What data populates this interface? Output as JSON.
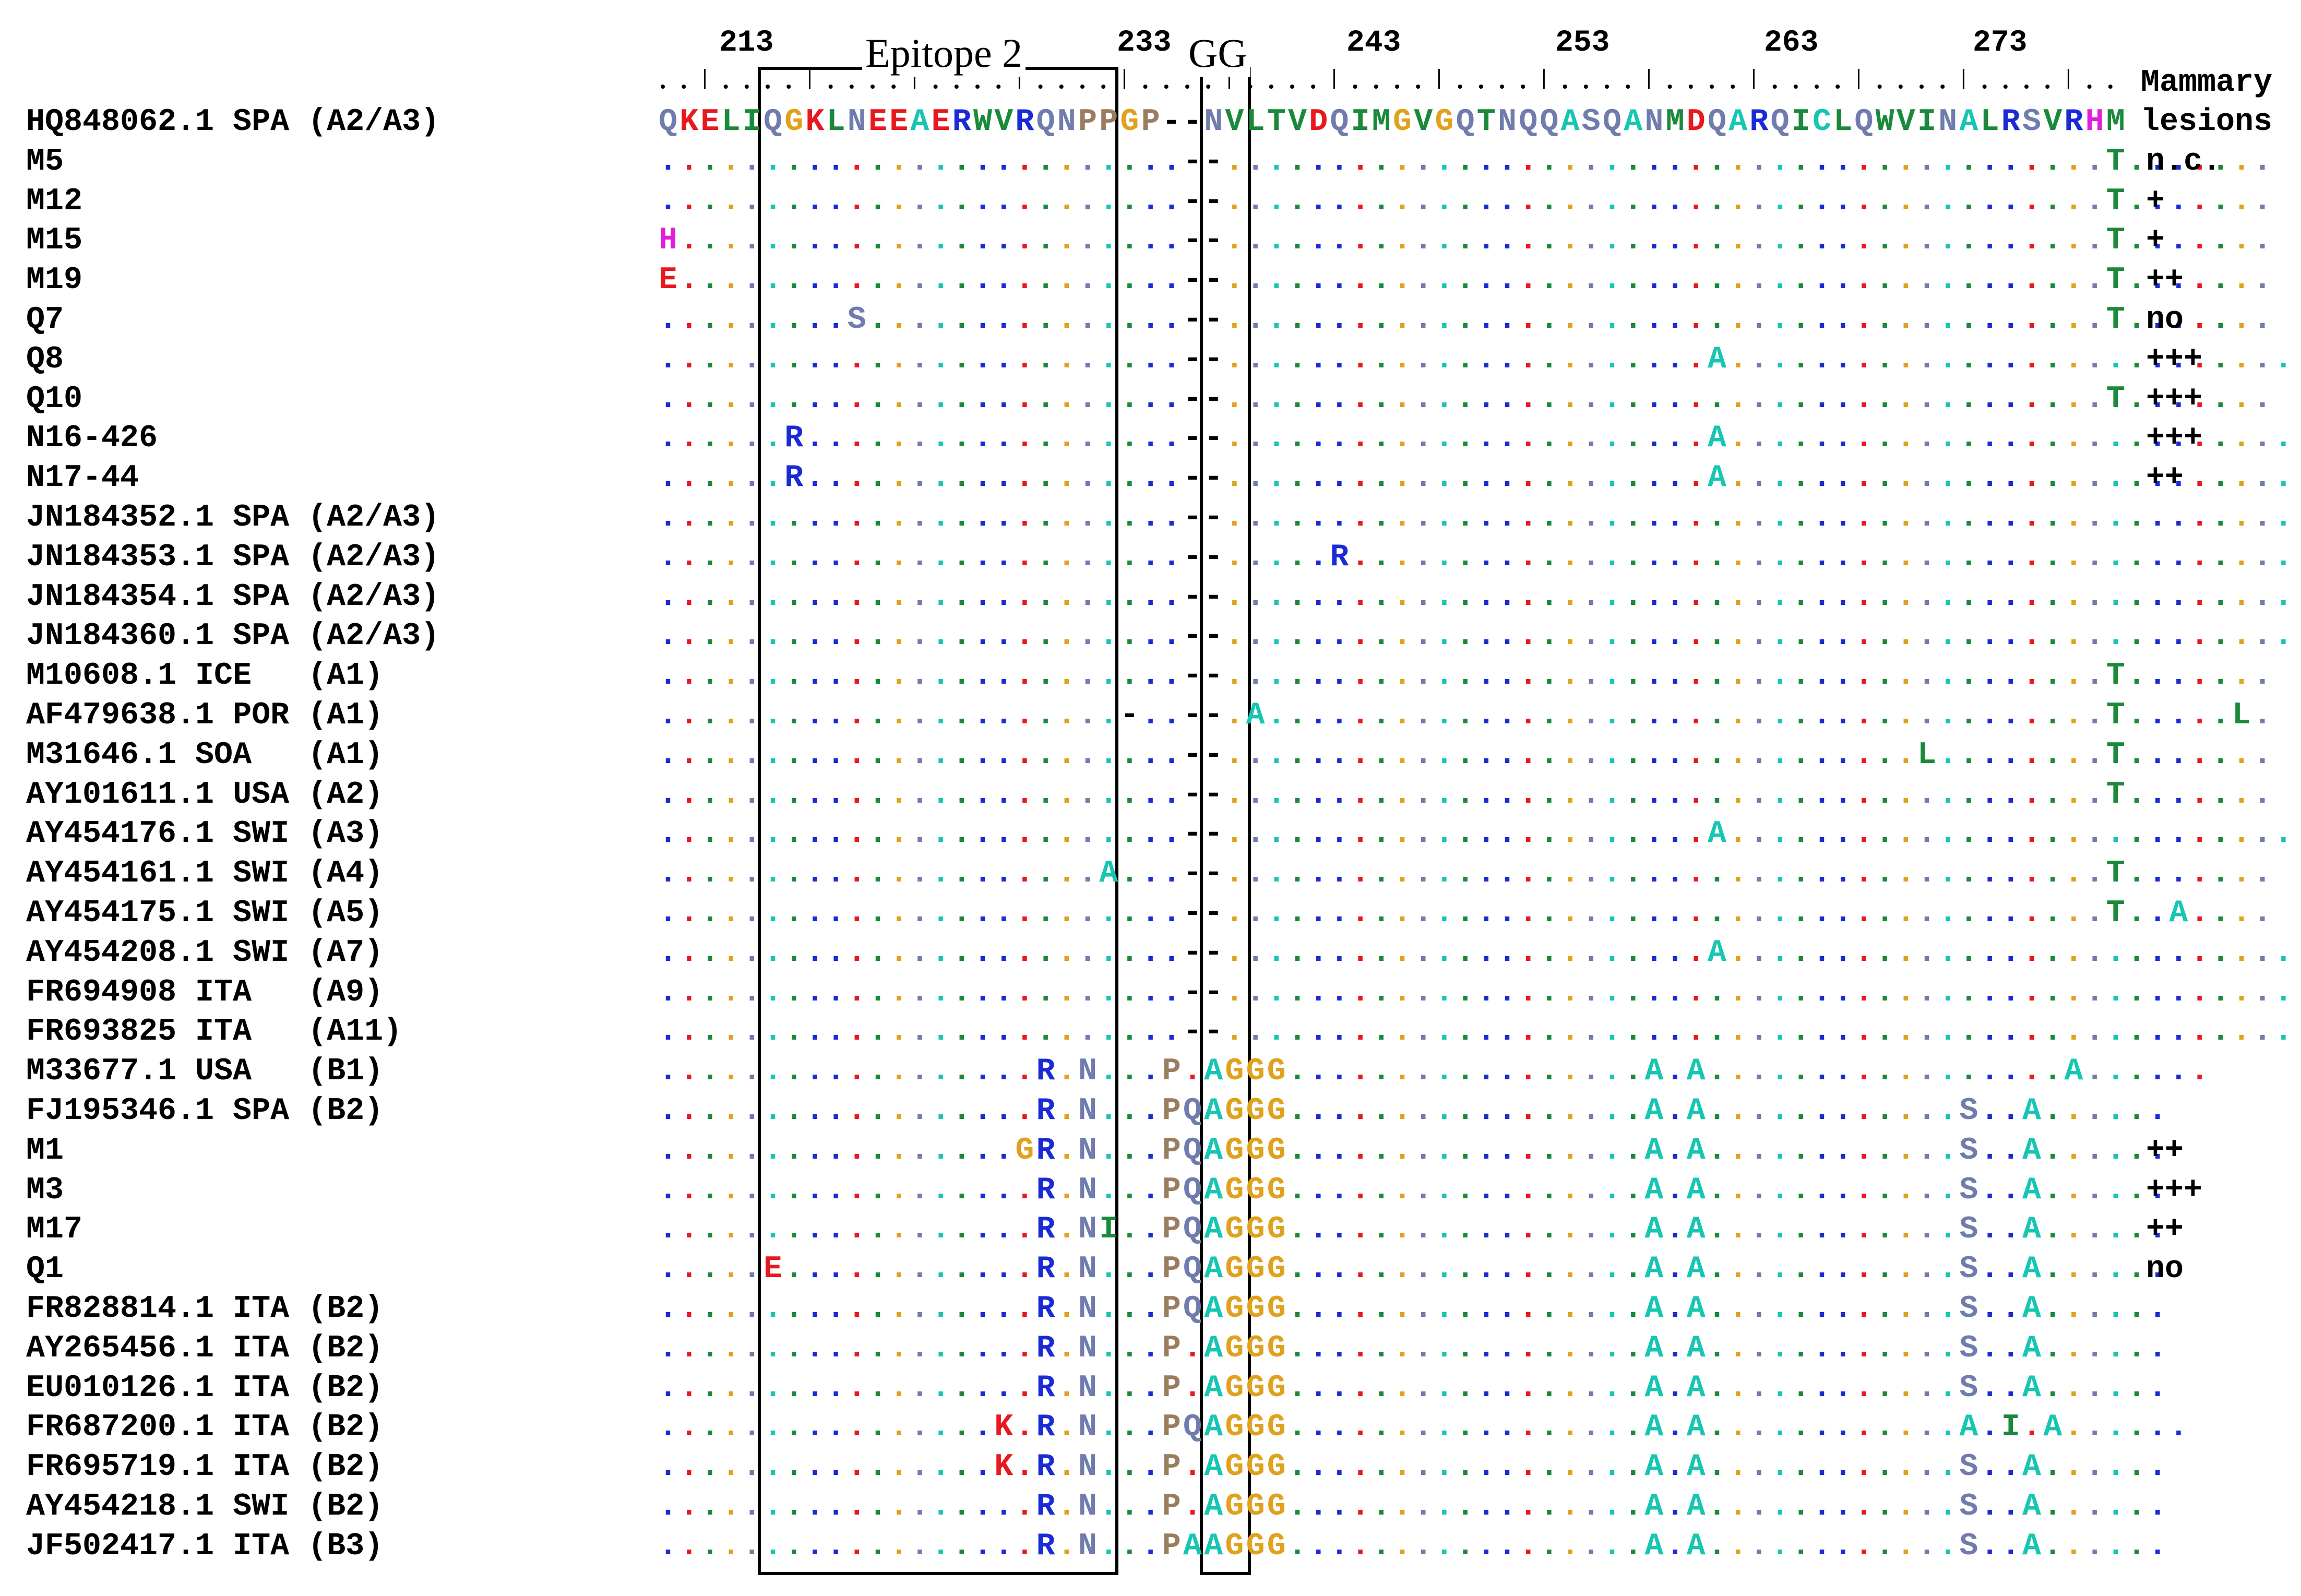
{
  "figure": {
    "epitope_label": "Epitope 2",
    "gg_label": "GG",
    "lesions_header_1": "Mammary",
    "lesions_header_2": "lesions",
    "ruler_numbers": [
      "213",
      "233",
      "243",
      "253",
      "263",
      "273"
    ],
    "colors": {
      "red": "#e8191e",
      "blue": "#1a2bd6",
      "teal": "#17c6b2",
      "green": "#1a8a3a",
      "orange": "#e0a21d",
      "slate": "#6f7cad",
      "brown": "#9a7d5c",
      "magenta": "#e020d8"
    },
    "reference": {
      "label": "HQ848062.1 SPA (A2/A3)",
      "sequence": "QKELIQGKLNEEAERWVRQNPPGP--NVLTVDQIMGVGQTNQQASQANMDQARQICLQWVINALRSVRHM",
      "lesions": "lesions"
    },
    "rows": [
      {
        "label": "M5",
        "lesions": "n.c.",
        "sequence": ".........................--..........................................T......."
      },
      {
        "label": "M12",
        "lesions": "+",
        "sequence": ".........................--..........................................T......."
      },
      {
        "label": "M15",
        "lesions": "+",
        "sequence": "H........................--..........................................T......."
      },
      {
        "label": "M19",
        "lesions": "++",
        "sequence": "E........................--..........................................T......."
      },
      {
        "label": "Q7",
        "lesions": "no",
        "sequence": ".........S...............--..........................................T......."
      },
      {
        "label": "Q8",
        "lesions": "+++",
        "sequence": ".........................--.......................A..........................."
      },
      {
        "label": "Q10",
        "lesions": "+++",
        "sequence": ".........................--..........................................T......."
      },
      {
        "label": "N16-426",
        "lesions": "+++",
        "sequence": "......R..................--.......................A..........................."
      },
      {
        "label": "N17-44",
        "lesions": "++",
        "sequence": "......R..................--.......................A..........................."
      },
      {
        "label": "JN184352.1 SPA (A2/A3)",
        "lesions": "",
        "sequence": ".........................--...................................................."
      },
      {
        "label": "JN184353.1 SPA (A2/A3)",
        "lesions": "",
        "sequence": ".........................--.....R.............................................."
      },
      {
        "label": "JN184354.1 SPA (A2/A3)",
        "lesions": "",
        "sequence": ".........................--...................................................."
      },
      {
        "label": "JN184360.1 SPA (A2/A3)",
        "lesions": "",
        "sequence": ".........................--...................................................."
      },
      {
        "label": "M10608.1 ICE   (A1)",
        "lesions": "",
        "sequence": ".........................--..........................................T......."
      },
      {
        "label": "AF479638.1 POR (A1)",
        "lesions": "",
        "sequence": "......................-..--.A........................................T.....L."
      },
      {
        "label": "M31646.1 SOA   (A1)",
        "lesions": "",
        "sequence": ".........................--.................................L........T......."
      },
      {
        "label": "AY101611.1 USA (A2)",
        "lesions": "",
        "sequence": ".........................--..........................................T......."
      },
      {
        "label": "AY454176.1 SWI (A3)",
        "lesions": "",
        "sequence": ".........................--.......................A..........................."
      },
      {
        "label": "AY454161.1 SWI (A4)",
        "lesions": "",
        "sequence": ".....................A...--..........................................T......."
      },
      {
        "label": "AY454175.1 SWI (A5)",
        "lesions": "",
        "sequence": ".........................--..........................................T..A...."
      },
      {
        "label": "AY454208.1 SWI (A7)",
        "lesions": "",
        "sequence": ".........................--.......................A..........................."
      },
      {
        "label": "FR694908 ITA   (A9)",
        "lesions": "",
        "sequence": ".........................--...................................................."
      },
      {
        "label": "FR693825 ITA   (A11)",
        "lesions": "",
        "sequence": ".........................--...................................................."
      },
      {
        "label": "M33677.1 USA   (B1)",
        "lesions": "",
        "sequence": "..................R.N...P.AGGG.................A.A.................A......"
      },
      {
        "label": "FJ195346.1 SPA (B2)",
        "lesions": "",
        "sequence": "..................R.N...PQAGGG.................A.A............S..A......"
      },
      {
        "label": "M1",
        "lesions": "++",
        "sequence": ".................GR.N...PQAGGG.................A.A............S..A......"
      },
      {
        "label": "M3",
        "lesions": "+++",
        "sequence": "..................R.N...PQAGGG.................A.A............S..A......"
      },
      {
        "label": "M17",
        "lesions": "++",
        "sequence": "..................R.NI..PQAGGG.................A.A............S..A......"
      },
      {
        "label": "Q1",
        "lesions": "no",
        "sequence": ".....E............R.N...PQAGGG.................A.A............S..A......"
      },
      {
        "label": "FR828814.1 ITA (B2)",
        "lesions": "",
        "sequence": "..................R.N...PQAGGG.................A.A............S..A......"
      },
      {
        "label": "AY265456.1 ITA (B2)",
        "lesions": "",
        "sequence": "..................R.N...P.AGGG.................A.A............S..A......"
      },
      {
        "label": "EU010126.1 ITA (B2)",
        "lesions": "",
        "sequence": "..................R.N...P.AGGG.................A.A............S..A......"
      },
      {
        "label": "FR687200.1 ITA (B2)",
        "lesions": "",
        "sequence": "................K.R.N...PQAGGG.................A.A............A.I.A......"
      },
      {
        "label": "FR695719.1 ITA (B2)",
        "lesions": "",
        "sequence": "................K.R.N...P.AGGG.................A.A............S..A......"
      },
      {
        "label": "AY454218.1 SWI (B2)",
        "lesions": "",
        "sequence": "..................R.N...P.AGGG.................A.A............S..A......"
      },
      {
        "label": "JF502417.1 ITA (B3)",
        "lesions": "",
        "sequence": "..................R.N...PAAGGG.................A.A............S..A......"
      }
    ]
  }
}
